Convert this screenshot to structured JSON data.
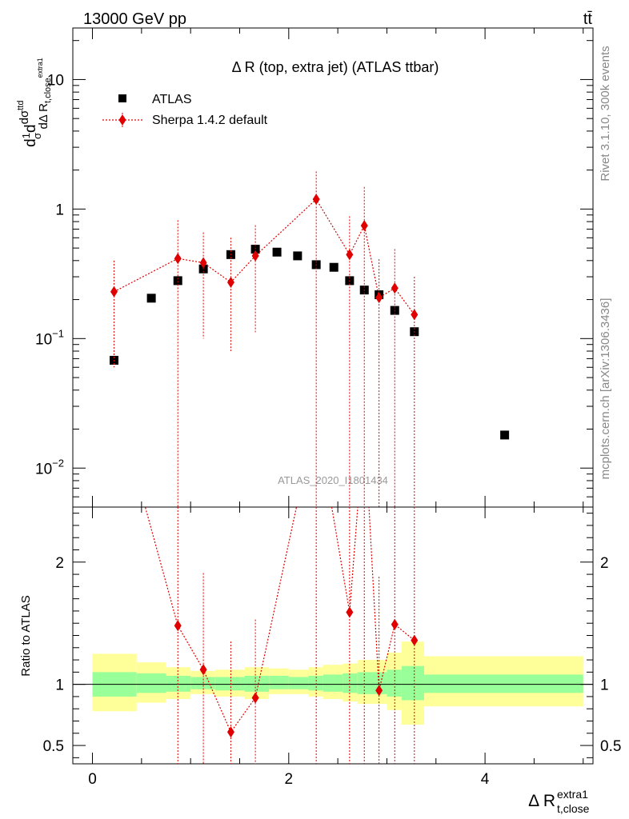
{
  "header": {
    "left": "13000 GeV pp",
    "right": "tt̄"
  },
  "side_labels": {
    "rivet": "Rivet 3.1.10,  300k events",
    "mcplots": "mcplots.cern.ch [arXiv:1306.3436]"
  },
  "watermark": "ATLAS_2020_I1801434",
  "colors": {
    "data": "#000000",
    "mc": "#e00000",
    "band_inner": "#99ff99",
    "band_outer": "#ffff99"
  },
  "chart_data": [
    {
      "type": "scatter",
      "title": "Δ R (top, extra jet) (ATLAS ttbar)",
      "ylabel": "dσ / dΔ R (1/σ)",
      "xlim": [
        -0.2,
        5.1
      ],
      "ylim": [
        0.005,
        25
      ],
      "yscale": "log",
      "yticks": [
        {
          "v": 0.01,
          "base": "10",
          "exp": "−2"
        },
        {
          "v": 0.1,
          "base": "10",
          "exp": "−1"
        },
        {
          "v": 1,
          "base": "1",
          "exp": ""
        },
        {
          "v": 10,
          "base": "10",
          "exp": ""
        }
      ],
      "legend_position": "top-left",
      "series": [
        {
          "name": "ATLAS",
          "marker": "square",
          "x": [
            0.22,
            0.6,
            0.87,
            1.13,
            1.41,
            1.66,
            1.88,
            2.09,
            2.28,
            2.46,
            2.62,
            2.77,
            2.92,
            3.08,
            3.28,
            4.2
          ],
          "y": [
            0.068,
            0.205,
            0.28,
            0.345,
            0.445,
            0.49,
            0.465,
            0.435,
            0.372,
            0.355,
            0.28,
            0.237,
            0.218,
            0.165,
            0.113,
            0.018
          ]
        },
        {
          "name": "Sherpa 1.4.2 default",
          "marker": "diamond",
          "x": [
            0.22,
            0.87,
            1.13,
            1.41,
            1.66,
            2.28,
            2.62,
            2.77,
            2.92,
            3.08,
            3.28
          ],
          "y": [
            0.23,
            0.415,
            0.385,
            0.272,
            0.435,
            1.19,
            0.445,
            0.745,
            0.207,
            0.245,
            0.153
          ],
          "yerr_low": [
            0.06,
            0.0001,
            0.1,
            0.08,
            0.112,
            0.0001,
            0.0001,
            0.0001,
            0.0001,
            0.0001,
            0.0001
          ],
          "yerr_high": [
            0.4,
            0.82,
            0.66,
            0.6,
            0.75,
            1.95,
            0.88,
            1.48,
            0.41,
            0.49,
            0.3
          ]
        }
      ]
    },
    {
      "type": "line",
      "xlabel": "Δ R",
      "xlabel_sub": "t,close",
      "xlabel_sup": "extra1",
      "ylabel": "Ratio to ATLAS",
      "xlim": [
        -0.2,
        5.1
      ],
      "ylim": [
        0.35,
        2.45
      ],
      "xticks": [
        0,
        2,
        4
      ],
      "yticks": [
        0.5,
        1,
        2
      ],
      "bands": {
        "edges": [
          0,
          0.45,
          0.75,
          1.0,
          1.25,
          1.55,
          1.8,
          2.0,
          2.2,
          2.35,
          2.55,
          2.7,
          2.85,
          3.0,
          3.15,
          3.38,
          5.0
        ],
        "inner_low": [
          0.9,
          0.93,
          0.94,
          0.96,
          0.95,
          0.94,
          0.96,
          0.96,
          0.95,
          0.94,
          0.93,
          0.92,
          0.92,
          0.9,
          0.87,
          0.93
        ],
        "inner_high": [
          1.1,
          1.09,
          1.07,
          1.06,
          1.06,
          1.07,
          1.07,
          1.06,
          1.07,
          1.08,
          1.09,
          1.1,
          1.1,
          1.12,
          1.15,
          1.08
        ],
        "outer_low": [
          0.78,
          0.85,
          0.88,
          0.92,
          0.9,
          0.88,
          0.92,
          0.92,
          0.9,
          0.88,
          0.86,
          0.84,
          0.84,
          0.79,
          0.67,
          0.82
        ],
        "outer_high": [
          1.25,
          1.18,
          1.14,
          1.11,
          1.12,
          1.14,
          1.13,
          1.12,
          1.14,
          1.16,
          1.17,
          1.2,
          1.2,
          1.26,
          1.35,
          1.23
        ]
      },
      "series": [
        {
          "name": "Sherpa 1.4.2 default",
          "x": [
            0.22,
            0.87,
            1.13,
            1.41,
            1.66,
            2.28,
            2.62,
            2.77,
            2.92,
            3.08,
            3.28
          ],
          "y": [
            3.38,
            1.48,
            1.12,
            0.61,
            0.89,
            3.2,
            1.59,
            3.14,
            0.95,
            1.49,
            1.36
          ],
          "yerr_low": [
            2.5,
            0.0001,
            0.29,
            0.29,
            0.23,
            0.0001,
            0.0001,
            0.0001,
            0.0001,
            0.0001,
            0.0001
          ],
          "yerr_high": [
            5.9,
            2.9,
            1.91,
            1.35,
            1.53,
            5.24,
            3.14,
            6.25,
            1.88,
            2.97,
            2.65
          ]
        }
      ]
    }
  ]
}
